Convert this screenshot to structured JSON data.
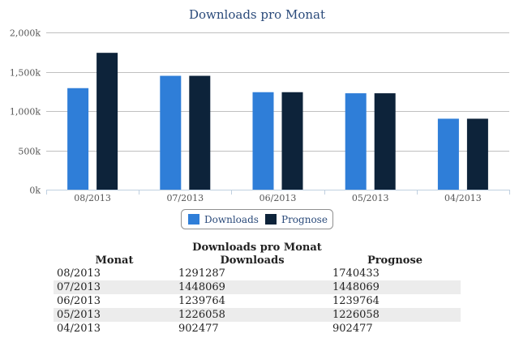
{
  "chart_data": {
    "type": "bar",
    "title": "Downloads pro Monat",
    "categories": [
      "08/2013",
      "07/2013",
      "06/2013",
      "05/2013",
      "04/2013"
    ],
    "series": [
      {
        "name": "Downloads",
        "color": "#2f7ed8",
        "values": [
          1291287,
          1448069,
          1239764,
          1226058,
          902477
        ]
      },
      {
        "name": "Prognose",
        "color": "#0d233a",
        "values": [
          1740433,
          1448069,
          1239764,
          1226058,
          902477
        ]
      }
    ],
    "ylim": [
      0,
      2000000
    ],
    "yticks": [
      {
        "value": 0,
        "label": "0k"
      },
      {
        "value": 500000,
        "label": "500k"
      },
      {
        "value": 1000000,
        "label": "1,000k"
      },
      {
        "value": 1500000,
        "label": "1,500k"
      },
      {
        "value": 2000000,
        "label": "2,000k"
      }
    ],
    "grid": true,
    "legend_position": "bottom-center"
  },
  "table": {
    "caption": "Downloads pro Monat",
    "headers": [
      "Monat",
      "Downloads",
      "Prognose"
    ],
    "rows": [
      [
        "08/2013",
        "1291287",
        "1740433"
      ],
      [
        "07/2013",
        "1448069",
        "1448069"
      ],
      [
        "06/2013",
        "1239764",
        "1239764"
      ],
      [
        "05/2013",
        "1226058",
        "1226058"
      ],
      [
        "04/2013",
        "902477",
        "902477"
      ]
    ]
  }
}
